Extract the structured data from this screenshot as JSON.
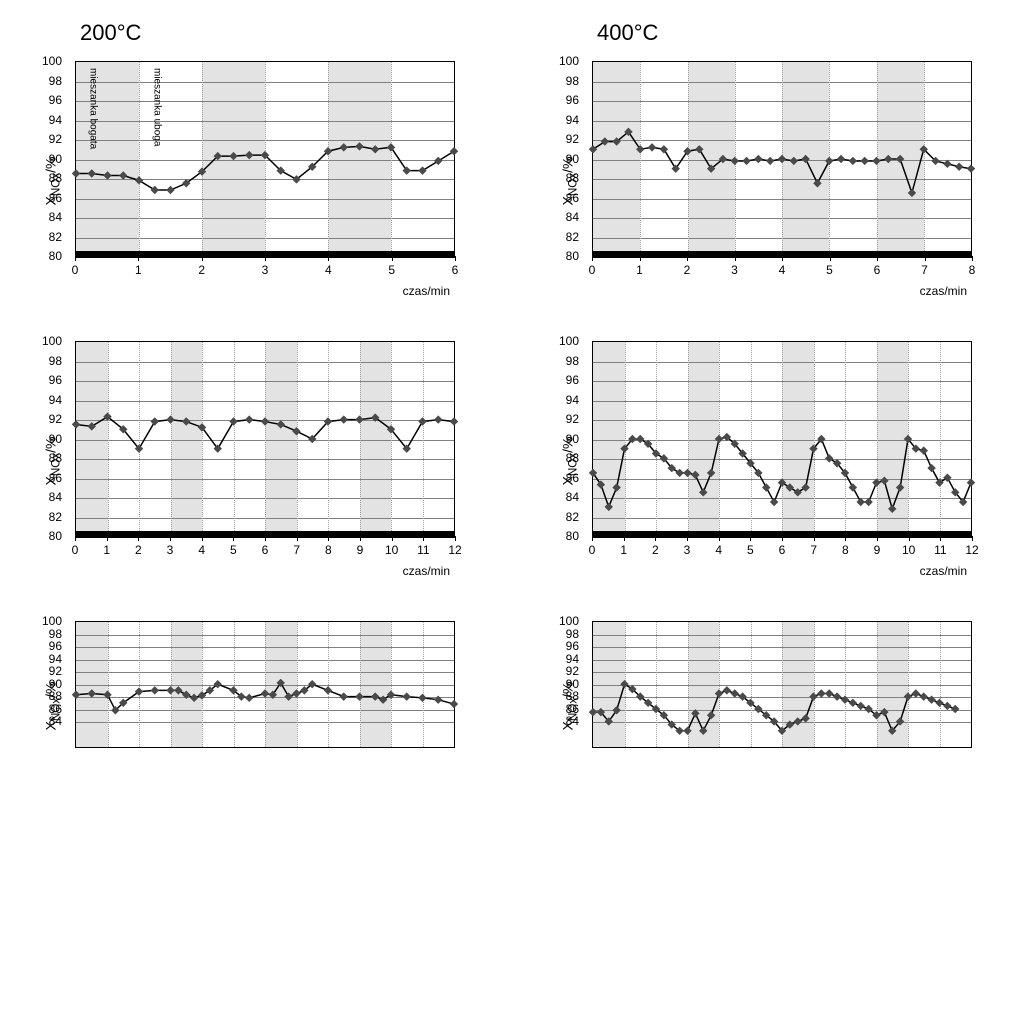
{
  "columns": [
    {
      "title": "200°C"
    },
    {
      "title": "400°C"
    }
  ],
  "ylabel": "X_NOx/%",
  "xlabel": "czas/min",
  "ylim": [
    80,
    100
  ],
  "ytick_step": 2,
  "colors": {
    "background": "#ffffff",
    "grid": "#808080",
    "shaded": "#d0d0d0",
    "line": "#000000",
    "marker": "#4a4a4a",
    "baseline": "#000000"
  },
  "annotations": {
    "bogata": "mieszanka bogata",
    "uboga": "mieszanka uboga"
  },
  "charts": [
    {
      "row": 0,
      "col": 0,
      "xlim": [
        0,
        6
      ],
      "xtick_step": 1,
      "shaded_bands": [
        [
          0,
          1
        ],
        [
          2,
          3
        ],
        [
          4,
          5
        ]
      ],
      "show_annotations": true,
      "data": [
        [
          0,
          88.5
        ],
        [
          0.25,
          88.5
        ],
        [
          0.5,
          88.3
        ],
        [
          0.75,
          88.3
        ],
        [
          1,
          87.8
        ],
        [
          1.25,
          86.8
        ],
        [
          1.5,
          86.8
        ],
        [
          1.75,
          87.5
        ],
        [
          2,
          88.7
        ],
        [
          2.25,
          90.3
        ],
        [
          2.5,
          90.3
        ],
        [
          2.75,
          90.4
        ],
        [
          3,
          90.4
        ],
        [
          3.25,
          88.8
        ],
        [
          3.5,
          87.9
        ],
        [
          3.75,
          89.2
        ],
        [
          4,
          90.8
        ],
        [
          4.25,
          91.2
        ],
        [
          4.5,
          91.3
        ],
        [
          4.75,
          91
        ],
        [
          5,
          91.2
        ],
        [
          5.25,
          88.8
        ],
        [
          5.5,
          88.8
        ],
        [
          5.75,
          89.8
        ],
        [
          6,
          90.8
        ]
      ]
    },
    {
      "row": 0,
      "col": 1,
      "xlim": [
        0,
        8
      ],
      "xtick_step": 1,
      "shaded_bands": [
        [
          0,
          1
        ],
        [
          2,
          3
        ],
        [
          4,
          5
        ],
        [
          6,
          7
        ]
      ],
      "data": [
        [
          0,
          91
        ],
        [
          0.25,
          91.8
        ],
        [
          0.5,
          91.8
        ],
        [
          0.75,
          92.8
        ],
        [
          1,
          91
        ],
        [
          1.25,
          91.2
        ],
        [
          1.5,
          91
        ],
        [
          1.75,
          89
        ],
        [
          2,
          90.8
        ],
        [
          2.25,
          91
        ],
        [
          2.5,
          89
        ],
        [
          2.75,
          90
        ],
        [
          3,
          89.8
        ],
        [
          3.25,
          89.8
        ],
        [
          3.5,
          90
        ],
        [
          3.75,
          89.8
        ],
        [
          4,
          90
        ],
        [
          4.25,
          89.8
        ],
        [
          4.5,
          90
        ],
        [
          4.75,
          87.5
        ],
        [
          5,
          89.8
        ],
        [
          5.25,
          90
        ],
        [
          5.5,
          89.8
        ],
        [
          5.75,
          89.8
        ],
        [
          6,
          89.8
        ],
        [
          6.25,
          90
        ],
        [
          6.5,
          90
        ],
        [
          6.75,
          86.5
        ],
        [
          7,
          91
        ],
        [
          7.25,
          89.8
        ],
        [
          7.5,
          89.5
        ],
        [
          7.75,
          89.2
        ],
        [
          8,
          89
        ]
      ]
    },
    {
      "row": 1,
      "col": 0,
      "xlim": [
        0,
        12
      ],
      "xtick_step": 1,
      "shaded_bands": [
        [
          0,
          1
        ],
        [
          3,
          4
        ],
        [
          6,
          7
        ],
        [
          9,
          10
        ]
      ],
      "data": [
        [
          0,
          91.5
        ],
        [
          0.5,
          91.3
        ],
        [
          1,
          92.3
        ],
        [
          1.5,
          91
        ],
        [
          2,
          89
        ],
        [
          2.5,
          91.8
        ],
        [
          3,
          92
        ],
        [
          3.5,
          91.8
        ],
        [
          4,
          91.2
        ],
        [
          4.5,
          89
        ],
        [
          5,
          91.8
        ],
        [
          5.5,
          92
        ],
        [
          6,
          91.8
        ],
        [
          6.5,
          91.5
        ],
        [
          7,
          90.8
        ],
        [
          7.5,
          90
        ],
        [
          8,
          91.8
        ],
        [
          8.5,
          92
        ],
        [
          9,
          92
        ],
        [
          9.5,
          92.2
        ],
        [
          10,
          91
        ],
        [
          10.5,
          89
        ],
        [
          11,
          91.8
        ],
        [
          11.5,
          92
        ],
        [
          12,
          91.8
        ]
      ]
    },
    {
      "row": 1,
      "col": 1,
      "xlim": [
        0,
        12
      ],
      "xtick_step": 1,
      "shaded_bands": [
        [
          0,
          1
        ],
        [
          3,
          4
        ],
        [
          6,
          7
        ],
        [
          9,
          10
        ]
      ],
      "data": [
        [
          0,
          86.5
        ],
        [
          0.25,
          85.3
        ],
        [
          0.5,
          83
        ],
        [
          0.75,
          85
        ],
        [
          1,
          89
        ],
        [
          1.25,
          90
        ],
        [
          1.5,
          90
        ],
        [
          1.75,
          89.5
        ],
        [
          2,
          88.5
        ],
        [
          2.25,
          88
        ],
        [
          2.5,
          87
        ],
        [
          2.75,
          86.5
        ],
        [
          3,
          86.5
        ],
        [
          3.25,
          86.3
        ],
        [
          3.5,
          84.5
        ],
        [
          3.75,
          86.5
        ],
        [
          4,
          90
        ],
        [
          4.25,
          90.2
        ],
        [
          4.5,
          89.5
        ],
        [
          4.75,
          88.5
        ],
        [
          5,
          87.5
        ],
        [
          5.25,
          86.5
        ],
        [
          5.5,
          85
        ],
        [
          5.75,
          83.5
        ],
        [
          6,
          85.5
        ],
        [
          6.25,
          85
        ],
        [
          6.5,
          84.5
        ],
        [
          6.75,
          85
        ],
        [
          7,
          89
        ],
        [
          7.25,
          90
        ],
        [
          7.5,
          88
        ],
        [
          7.75,
          87.5
        ],
        [
          8,
          86.5
        ],
        [
          8.25,
          85
        ],
        [
          8.5,
          83.5
        ],
        [
          8.75,
          83.5
        ],
        [
          9,
          85.5
        ],
        [
          9.25,
          85.7
        ],
        [
          9.5,
          82.8
        ],
        [
          9.75,
          85
        ],
        [
          10,
          90
        ],
        [
          10.25,
          89
        ],
        [
          10.5,
          88.8
        ],
        [
          10.75,
          87
        ],
        [
          11,
          85.5
        ],
        [
          11.25,
          86
        ],
        [
          11.5,
          84.5
        ],
        [
          11.75,
          83.5
        ],
        [
          12,
          85.5
        ]
      ]
    },
    {
      "row": 2,
      "col": 0,
      "xlim": [
        0,
        12
      ],
      "xtick_step": 1,
      "shaded_bands": [
        [
          0,
          1
        ],
        [
          3,
          4
        ],
        [
          6,
          7
        ],
        [
          9,
          10
        ]
      ],
      "partial": true,
      "data": [
        [
          0,
          88.3
        ],
        [
          0.5,
          88.5
        ],
        [
          1,
          88.3
        ],
        [
          1.25,
          85.8
        ],
        [
          1.5,
          87
        ],
        [
          2,
          88.8
        ],
        [
          2.5,
          89
        ],
        [
          3,
          89
        ],
        [
          3.25,
          89
        ],
        [
          3.5,
          88.3
        ],
        [
          3.75,
          87.8
        ],
        [
          4,
          88.2
        ],
        [
          4.25,
          89
        ],
        [
          4.5,
          90
        ],
        [
          5,
          89
        ],
        [
          5.25,
          88
        ],
        [
          5.5,
          87.8
        ],
        [
          6,
          88.5
        ],
        [
          6.25,
          88.3
        ],
        [
          6.5,
          90.2
        ],
        [
          6.75,
          88
        ],
        [
          7,
          88.5
        ],
        [
          7.25,
          89
        ],
        [
          7.5,
          90
        ],
        [
          8,
          89
        ],
        [
          8.5,
          88
        ],
        [
          9,
          88
        ],
        [
          9.5,
          88
        ],
        [
          9.75,
          87.5
        ],
        [
          10,
          88.3
        ],
        [
          10.5,
          88
        ],
        [
          11,
          87.8
        ],
        [
          11.5,
          87.5
        ],
        [
          12,
          86.8
        ]
      ]
    },
    {
      "row": 2,
      "col": 1,
      "xlim": [
        0,
        12
      ],
      "xtick_step": 1,
      "shaded_bands": [
        [
          0,
          1
        ],
        [
          3,
          4
        ],
        [
          6,
          7
        ],
        [
          9,
          10
        ]
      ],
      "partial": true,
      "data": [
        [
          0,
          85.5
        ],
        [
          0.25,
          85.5
        ],
        [
          0.5,
          84
        ],
        [
          0.75,
          85.8
        ],
        [
          1,
          90
        ],
        [
          1.25,
          89.2
        ],
        [
          1.5,
          88
        ],
        [
          1.75,
          87
        ],
        [
          2,
          86
        ],
        [
          2.25,
          85
        ],
        [
          2.5,
          83.5
        ],
        [
          2.75,
          82.5
        ],
        [
          3,
          82.5
        ],
        [
          3.25,
          85.3
        ],
        [
          3.5,
          82.5
        ],
        [
          3.75,
          85
        ],
        [
          4,
          88.5
        ],
        [
          4.25,
          89
        ],
        [
          4.5,
          88.5
        ],
        [
          4.75,
          88
        ],
        [
          5,
          87
        ],
        [
          5.25,
          86
        ],
        [
          5.5,
          85
        ],
        [
          5.75,
          84
        ],
        [
          6,
          82.5
        ],
        [
          6.25,
          83.5
        ],
        [
          6.5,
          84
        ],
        [
          6.75,
          84.5
        ],
        [
          7,
          88
        ],
        [
          7.25,
          88.5
        ],
        [
          7.5,
          88.5
        ],
        [
          7.75,
          88
        ],
        [
          8,
          87.5
        ],
        [
          8.25,
          87
        ],
        [
          8.5,
          86.5
        ],
        [
          8.75,
          86
        ],
        [
          9,
          85
        ],
        [
          9.25,
          85.5
        ],
        [
          9.5,
          82.5
        ],
        [
          9.75,
          84
        ],
        [
          10,
          88
        ],
        [
          10.25,
          88.5
        ],
        [
          10.5,
          88
        ],
        [
          10.75,
          87.5
        ],
        [
          11,
          87
        ],
        [
          11.25,
          86.5
        ],
        [
          11.5,
          86
        ]
      ]
    }
  ]
}
